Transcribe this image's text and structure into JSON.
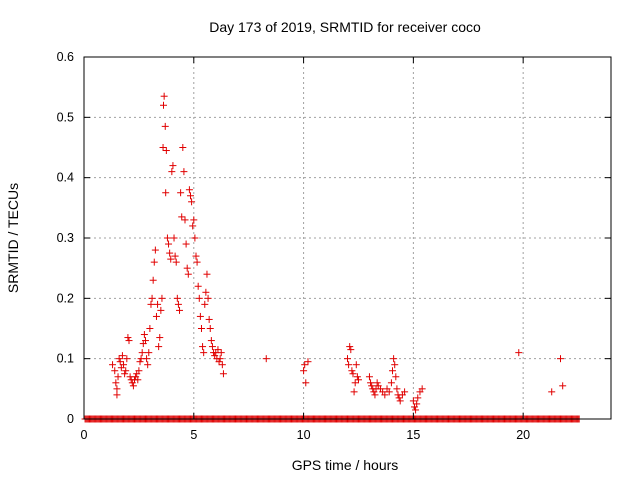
{
  "chart_data": {
    "type": "scatter",
    "title": "Day 173 of 2019, SRMTID for receiver coco",
    "xlabel": "GPS time / hours",
    "ylabel": "SRMTID / TECUs",
    "xlim": [
      0,
      24
    ],
    "ylim": [
      0,
      0.6
    ],
    "xticks": [
      0,
      5,
      10,
      15,
      20
    ],
    "yticks": [
      0,
      0.1,
      0.2,
      0.3,
      0.4,
      0.5,
      0.6
    ],
    "xtick_labels": [
      "0",
      "5",
      "10",
      "15",
      "20"
    ],
    "ytick_labels": [
      "0",
      "0.1",
      "0.2",
      "0.3",
      "0.4",
      "0.5",
      "0.6"
    ],
    "grid": true,
    "marker": "+",
    "color": "#e00000",
    "series": [
      {
        "name": "SRMTID",
        "points": [
          [
            1.3,
            0.09
          ],
          [
            1.4,
            0.08
          ],
          [
            1.45,
            0.06
          ],
          [
            1.5,
            0.05
          ],
          [
            1.5,
            0.04
          ],
          [
            1.55,
            0.07
          ],
          [
            1.6,
            0.1
          ],
          [
            1.65,
            0.095
          ],
          [
            1.7,
            0.085
          ],
          [
            1.75,
            0.105
          ],
          [
            1.8,
            0.09
          ],
          [
            1.85,
            0.075
          ],
          [
            1.9,
            0.08
          ],
          [
            1.95,
            0.1
          ],
          [
            2.0,
            0.135
          ],
          [
            2.05,
            0.13
          ],
          [
            2.1,
            0.07
          ],
          [
            2.15,
            0.065
          ],
          [
            2.2,
            0.06
          ],
          [
            2.25,
            0.055
          ],
          [
            2.3,
            0.065
          ],
          [
            2.35,
            0.07
          ],
          [
            2.4,
            0.075
          ],
          [
            2.45,
            0.065
          ],
          [
            2.5,
            0.08
          ],
          [
            2.55,
            0.095
          ],
          [
            2.6,
            0.1
          ],
          [
            2.65,
            0.11
          ],
          [
            2.7,
            0.125
          ],
          [
            2.75,
            0.14
          ],
          [
            2.8,
            0.13
          ],
          [
            2.85,
            0.1
          ],
          [
            2.9,
            0.09
          ],
          [
            2.95,
            0.11
          ],
          [
            3.0,
            0.15
          ],
          [
            3.05,
            0.19
          ],
          [
            3.1,
            0.2
          ],
          [
            3.15,
            0.23
          ],
          [
            3.2,
            0.26
          ],
          [
            3.25,
            0.28
          ],
          [
            3.3,
            0.17
          ],
          [
            3.35,
            0.19
          ],
          [
            3.4,
            0.12
          ],
          [
            3.45,
            0.135
          ],
          [
            3.5,
            0.18
          ],
          [
            3.55,
            0.2
          ],
          [
            3.6,
            0.45
          ],
          [
            3.62,
            0.52
          ],
          [
            3.65,
            0.535
          ],
          [
            3.7,
            0.485
          ],
          [
            3.72,
            0.375
          ],
          [
            3.75,
            0.445
          ],
          [
            3.8,
            0.3
          ],
          [
            3.85,
            0.29
          ],
          [
            3.9,
            0.275
          ],
          [
            3.95,
            0.265
          ],
          [
            4.0,
            0.41
          ],
          [
            4.05,
            0.42
          ],
          [
            4.1,
            0.3
          ],
          [
            4.15,
            0.27
          ],
          [
            4.2,
            0.26
          ],
          [
            4.25,
            0.2
          ],
          [
            4.3,
            0.19
          ],
          [
            4.35,
            0.18
          ],
          [
            4.4,
            0.375
          ],
          [
            4.45,
            0.335
          ],
          [
            4.5,
            0.45
          ],
          [
            4.55,
            0.41
          ],
          [
            4.6,
            0.33
          ],
          [
            4.65,
            0.29
          ],
          [
            4.7,
            0.25
          ],
          [
            4.75,
            0.24
          ],
          [
            4.8,
            0.38
          ],
          [
            4.85,
            0.37
          ],
          [
            4.9,
            0.36
          ],
          [
            4.95,
            0.32
          ],
          [
            5.0,
            0.33
          ],
          [
            5.05,
            0.3
          ],
          [
            5.1,
            0.27
          ],
          [
            5.15,
            0.26
          ],
          [
            5.2,
            0.22
          ],
          [
            5.25,
            0.2
          ],
          [
            5.3,
            0.17
          ],
          [
            5.35,
            0.15
          ],
          [
            5.4,
            0.12
          ],
          [
            5.45,
            0.11
          ],
          [
            5.5,
            0.19
          ],
          [
            5.55,
            0.21
          ],
          [
            5.6,
            0.24
          ],
          [
            5.65,
            0.2
          ],
          [
            5.7,
            0.165
          ],
          [
            5.75,
            0.15
          ],
          [
            5.8,
            0.13
          ],
          [
            5.85,
            0.12
          ],
          [
            5.9,
            0.11
          ],
          [
            5.95,
            0.105
          ],
          [
            6.0,
            0.11
          ],
          [
            6.05,
            0.1
          ],
          [
            6.1,
            0.115
          ],
          [
            6.15,
            0.095
          ],
          [
            6.2,
            0.1
          ],
          [
            6.25,
            0.11
          ],
          [
            6.3,
            0.09
          ],
          [
            6.35,
            0.075
          ],
          [
            8.3,
            0.1
          ],
          [
            10.0,
            0.08
          ],
          [
            10.05,
            0.09
          ],
          [
            10.1,
            0.06
          ],
          [
            10.2,
            0.095
          ],
          [
            12.0,
            0.1
          ],
          [
            12.05,
            0.09
          ],
          [
            12.1,
            0.12
          ],
          [
            12.15,
            0.115
          ],
          [
            12.2,
            0.08
          ],
          [
            12.25,
            0.075
          ],
          [
            12.3,
            0.045
          ],
          [
            12.35,
            0.06
          ],
          [
            12.4,
            0.09
          ],
          [
            12.45,
            0.07
          ],
          [
            12.5,
            0.065
          ],
          [
            13.0,
            0.07
          ],
          [
            13.05,
            0.06
          ],
          [
            13.1,
            0.055
          ],
          [
            13.15,
            0.05
          ],
          [
            13.2,
            0.045
          ],
          [
            13.25,
            0.04
          ],
          [
            13.3,
            0.05
          ],
          [
            13.35,
            0.06
          ],
          [
            13.4,
            0.055
          ],
          [
            13.5,
            0.05
          ],
          [
            13.6,
            0.045
          ],
          [
            13.7,
            0.04
          ],
          [
            13.8,
            0.05
          ],
          [
            13.9,
            0.045
          ],
          [
            14.0,
            0.06
          ],
          [
            14.05,
            0.08
          ],
          [
            14.1,
            0.1
          ],
          [
            14.15,
            0.09
          ],
          [
            14.2,
            0.07
          ],
          [
            14.25,
            0.05
          ],
          [
            14.3,
            0.04
          ],
          [
            14.35,
            0.035
          ],
          [
            14.4,
            0.03
          ],
          [
            14.5,
            0.04
          ],
          [
            14.6,
            0.045
          ],
          [
            15.0,
            0.03
          ],
          [
            15.05,
            0.02
          ],
          [
            15.1,
            0.015
          ],
          [
            15.15,
            0.025
          ],
          [
            15.2,
            0.035
          ],
          [
            15.3,
            0.045
          ],
          [
            15.4,
            0.05
          ],
          [
            19.8,
            0.11
          ],
          [
            21.3,
            0.045
          ],
          [
            21.7,
            0.1
          ],
          [
            21.8,
            0.055
          ]
        ],
        "zero_baseline_range_hours": [
          0.05,
          22.6
        ]
      }
    ]
  }
}
